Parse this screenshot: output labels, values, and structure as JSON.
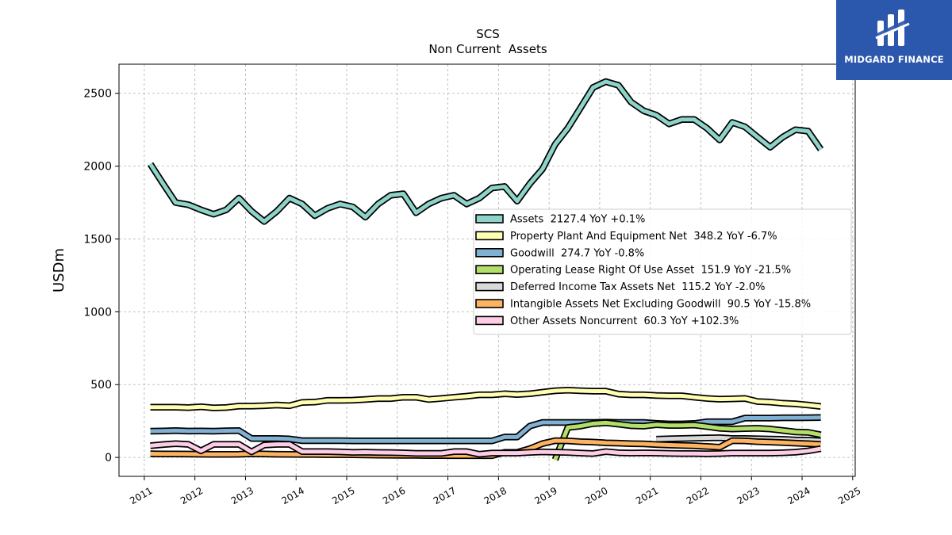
{
  "logo": {
    "text": "MIDGARD FINANCE"
  },
  "chart_data": {
    "type": "line",
    "title": "SCS",
    "subtitle": "Non Current  Assets",
    "xlabel": "",
    "ylabel": "USDm",
    "xlim": [
      2010.5,
      2025.05
    ],
    "ylim": [
      -130,
      2700
    ],
    "x_ticks": [
      2011,
      2012,
      2013,
      2014,
      2015,
      2016,
      2017,
      2018,
      2019,
      2020,
      2021,
      2022,
      2023,
      2024,
      2025
    ],
    "y_ticks": [
      0,
      500,
      1000,
      1500,
      2000,
      2500
    ],
    "grid": true,
    "legend_position": "center-right",
    "series": [
      {
        "name": "Assets  2127.4 YoY +0.1%",
        "color": "#8dd3c7",
        "x": [
          2011.12,
          2011.37,
          2011.62,
          2011.87,
          2012.12,
          2012.37,
          2012.62,
          2012.87,
          2013.12,
          2013.37,
          2013.62,
          2013.87,
          2014.12,
          2014.37,
          2014.62,
          2014.87,
          2015.12,
          2015.37,
          2015.62,
          2015.87,
          2016.12,
          2016.37,
          2016.62,
          2016.87,
          2017.12,
          2017.37,
          2017.62,
          2017.87,
          2018.12,
          2018.37,
          2018.62,
          2018.87,
          2019.12,
          2019.37,
          2019.62,
          2019.87,
          2020.12,
          2020.37,
          2020.62,
          2020.87,
          2021.12,
          2021.37,
          2021.62,
          2021.87,
          2022.12,
          2022.37,
          2022.62,
          2022.87,
          2023.12,
          2023.37,
          2023.62,
          2023.87,
          2024.12,
          2024.37
        ],
        "values": [
          2015,
          1880,
          1750,
          1735,
          1700,
          1670,
          1700,
          1780,
          1690,
          1620,
          1690,
          1780,
          1740,
          1660,
          1710,
          1740,
          1720,
          1650,
          1740,
          1800,
          1810,
          1680,
          1740,
          1780,
          1800,
          1740,
          1780,
          1850,
          1860,
          1760,
          1880,
          1980,
          2150,
          2260,
          2400,
          2540,
          2580,
          2555,
          2440,
          2380,
          2350,
          2290,
          2320,
          2320,
          2260,
          2180,
          2300,
          2270,
          2200,
          2130,
          2200,
          2250,
          2240,
          2115
        ]
      },
      {
        "name": "Property Plant And Equipment Net  348.2 YoY -6.7%",
        "color": "#ffffb3",
        "x": [
          2011.12,
          2011.37,
          2011.62,
          2011.87,
          2012.12,
          2012.37,
          2012.62,
          2012.87,
          2013.12,
          2013.37,
          2013.62,
          2013.87,
          2014.12,
          2014.37,
          2014.62,
          2014.87,
          2015.12,
          2015.37,
          2015.62,
          2015.87,
          2016.12,
          2016.37,
          2016.62,
          2016.87,
          2017.12,
          2017.37,
          2017.62,
          2017.87,
          2018.12,
          2018.37,
          2018.62,
          2018.87,
          2019.12,
          2019.37,
          2019.62,
          2019.87,
          2020.12,
          2020.37,
          2020.62,
          2020.87,
          2021.12,
          2021.37,
          2021.62,
          2021.87,
          2022.12,
          2022.37,
          2022.62,
          2022.87,
          2023.12,
          2023.37,
          2023.62,
          2023.87,
          2024.12,
          2024.37
        ],
        "values": [
          345,
          345,
          345,
          342,
          348,
          340,
          343,
          352,
          352,
          355,
          360,
          355,
          378,
          380,
          392,
          392,
          393,
          398,
          404,
          404,
          413,
          413,
          398,
          405,
          413,
          420,
          430,
          430,
          437,
          432,
          437,
          448,
          458,
          462,
          458,
          455,
          455,
          435,
          430,
          430,
          425,
          423,
          423,
          413,
          405,
          400,
          402,
          405,
          384,
          380,
          372,
          368,
          360,
          350
        ]
      },
      {
        "name": "Goodwill  274.7 YoY -0.8%",
        "color": "#80b1d3",
        "x": [
          2011.12,
          2011.37,
          2011.62,
          2011.87,
          2012.12,
          2012.37,
          2012.62,
          2012.87,
          2013.12,
          2013.37,
          2013.62,
          2013.87,
          2014.12,
          2014.37,
          2014.62,
          2014.87,
          2015.12,
          2015.37,
          2015.62,
          2015.87,
          2016.12,
          2016.37,
          2016.62,
          2016.87,
          2017.12,
          2017.37,
          2017.62,
          2017.87,
          2018.12,
          2018.37,
          2018.62,
          2018.87,
          2019.12,
          2019.37,
          2019.62,
          2019.87,
          2020.12,
          2020.37,
          2020.62,
          2020.87,
          2021.12,
          2021.37,
          2021.62,
          2021.87,
          2022.12,
          2022.37,
          2022.62,
          2022.87,
          2023.12,
          2023.37,
          2023.62,
          2023.87,
          2024.12,
          2024.37
        ],
        "values": [
          180,
          182,
          184,
          181,
          182,
          180,
          183,
          184,
          130,
          130,
          130,
          127,
          115,
          115,
          115,
          115,
          114,
          114,
          113,
          113,
          113,
          113,
          113,
          113,
          113,
          113,
          113,
          113,
          140,
          140,
          215,
          240,
          240,
          240,
          240,
          240,
          242,
          240,
          240,
          240,
          234,
          230,
          230,
          233,
          245,
          245,
          245,
          270,
          270,
          270,
          272,
          272,
          273,
          274
        ]
      },
      {
        "name": "Operating Lease Right Of Use Asset  151.9 YoY -21.5%",
        "color": "#b3de69",
        "x": [
          2019.12,
          2019.37,
          2019.62,
          2019.87,
          2020.12,
          2020.37,
          2020.62,
          2020.87,
          2021.12,
          2021.37,
          2021.62,
          2021.87,
          2022.12,
          2022.37,
          2022.62,
          2022.87,
          2023.12,
          2023.37,
          2023.62,
          2023.87,
          2024.12,
          2024.37
        ],
        "values": [
          -15,
          205,
          215,
          232,
          238,
          228,
          218,
          215,
          225,
          220,
          220,
          222,
          212,
          200,
          195,
          198,
          200,
          195,
          185,
          175,
          172,
          155
        ]
      },
      {
        "name": "Deferred Income Tax Assets Net  115.2 YoY -2.0%",
        "color": "#d9d9d9",
        "x": [
          2021.12,
          2021.37,
          2021.62,
          2021.87,
          2022.12,
          2022.37,
          2022.62,
          2022.87,
          2023.12,
          2023.37,
          2023.62,
          2023.87,
          2024.12,
          2024.37
        ],
        "values": [
          125,
          128,
          130,
          132,
          134,
          135,
          130,
          130,
          128,
          126,
          124,
          120,
          118,
          115
        ]
      },
      {
        "name": "Intangible Assets Net Excluding Goodwill  90.5 YoY -15.8%",
        "color": "#fdb462",
        "x": [
          2011.12,
          2011.37,
          2011.62,
          2011.87,
          2012.12,
          2012.37,
          2012.62,
          2012.87,
          2013.12,
          2013.37,
          2013.62,
          2013.87,
          2014.12,
          2014.37,
          2014.62,
          2014.87,
          2015.12,
          2015.37,
          2015.62,
          2015.87,
          2016.12,
          2016.37,
          2016.62,
          2016.87,
          2017.12,
          2017.37,
          2017.62,
          2017.87,
          2018.12,
          2018.37,
          2018.62,
          2018.87,
          2019.12,
          2019.37,
          2019.62,
          2019.87,
          2020.12,
          2020.37,
          2020.62,
          2020.87,
          2021.12,
          2021.37,
          2021.62,
          2021.87,
          2022.12,
          2022.37,
          2022.62,
          2022.87,
          2023.12,
          2023.37,
          2023.62,
          2023.87,
          2024.12,
          2024.37
        ],
        "values": [
          25,
          24,
          24,
          23,
          22,
          21,
          21,
          22,
          25,
          24,
          22,
          21,
          20,
          20,
          19,
          19,
          18,
          17,
          16,
          15,
          14,
          14,
          13,
          13,
          12,
          12,
          12,
          12,
          35,
          35,
          60,
          95,
          115,
          113,
          108,
          105,
          100,
          98,
          95,
          93,
          88,
          85,
          82,
          80,
          75,
          70,
          115,
          113,
          108,
          105,
          102,
          98,
          94,
          90
        ]
      },
      {
        "name": "Other Assets Noncurrent  60.3 YoY +102.3%",
        "color": "#fccde5",
        "x": [
          2011.12,
          2011.37,
          2011.62,
          2011.87,
          2012.12,
          2012.37,
          2012.62,
          2012.87,
          2013.12,
          2013.37,
          2013.62,
          2013.87,
          2014.12,
          2014.37,
          2014.62,
          2014.87,
          2015.12,
          2015.37,
          2015.62,
          2015.87,
          2016.12,
          2016.37,
          2016.62,
          2016.87,
          2017.12,
          2017.37,
          2017.62,
          2017.87,
          2018.12,
          2018.37,
          2018.62,
          2018.87,
          2019.12,
          2019.37,
          2019.62,
          2019.87,
          2020.12,
          2020.37,
          2020.62,
          2020.87,
          2021.12,
          2021.37,
          2021.62,
          2021.87,
          2022.12,
          2022.37,
          2022.62,
          2022.87,
          2023.12,
          2023.37,
          2023.62,
          2023.87,
          2024.12,
          2024.37
        ],
        "values": [
          80,
          88,
          95,
          90,
          45,
          90,
          90,
          90,
          38,
          85,
          90,
          90,
          40,
          40,
          40,
          38,
          35,
          36,
          34,
          33,
          31,
          28,
          28,
          28,
          40,
          40,
          22,
          30,
          30,
          30,
          35,
          38,
          36,
          34,
          30,
          27,
          40,
          32,
          30,
          31,
          30,
          28,
          27,
          26,
          25,
          27,
          30,
          30,
          30,
          30,
          32,
          36,
          45,
          60
        ]
      }
    ]
  }
}
